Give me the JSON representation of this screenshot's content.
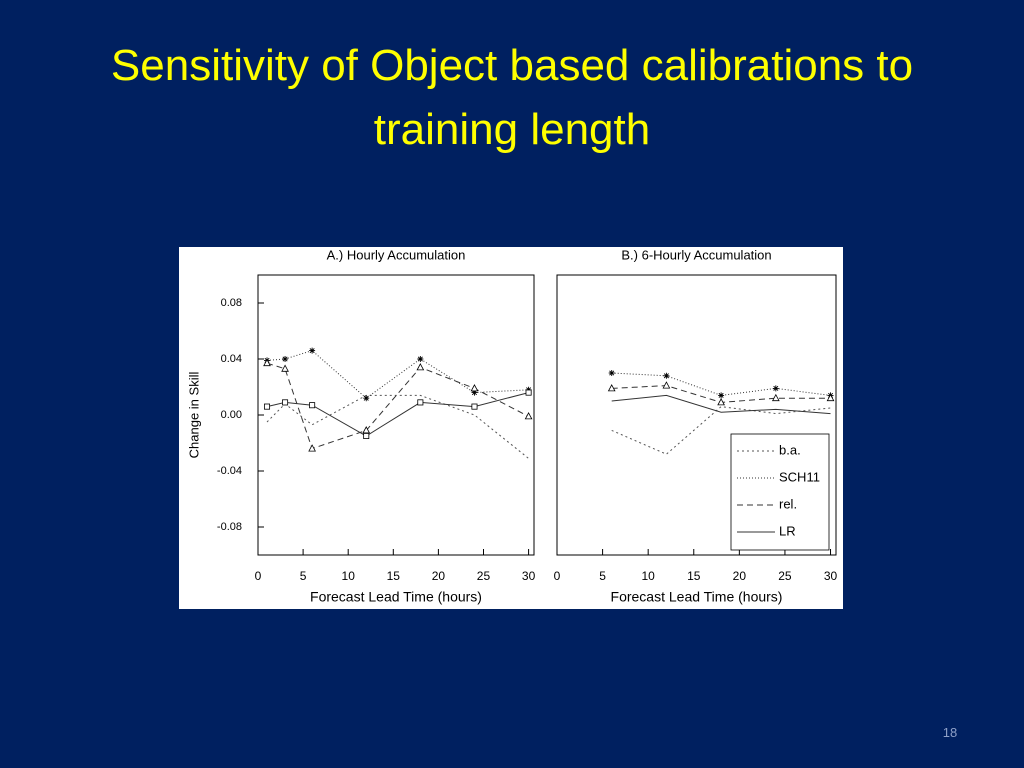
{
  "slide_title": "Sensitivity of Object based calibrations to training length",
  "page_number": "18",
  "chart_data": [
    {
      "type": "line",
      "title": "A.) Hourly Accumulation",
      "x_label": "Forecast Lead Time (hours)",
      "y_label": "Change in Skill",
      "x": [
        1,
        3,
        6,
        12,
        18,
        24,
        30
      ],
      "xlim": [
        0,
        30.6
      ],
      "xticks": [
        0,
        5,
        10,
        15,
        20,
        25,
        30
      ],
      "ylim": [
        -0.1,
        0.1
      ],
      "yticks": [
        0.08,
        0.04,
        {
          "value": 0,
          "label": "0.00"
        },
        -0.04,
        -0.08
      ],
      "series": [
        {
          "name": "b.a.",
          "color": "#555555",
          "dash": "2,3",
          "values": [
            -0.005,
            0.008,
            -0.007,
            0.014,
            0.014,
            0.0,
            -0.031
          ]
        },
        {
          "name": "SCH11",
          "color": "#333333",
          "dash": "1,2",
          "marker": "asterisk",
          "values": [
            0.039,
            0.04,
            0.046,
            0.012,
            0.04,
            0.016,
            0.018
          ]
        },
        {
          "name": "rel.",
          "color": "#333333",
          "dash": "6,4",
          "marker": "triangle",
          "values": [
            0.037,
            0.033,
            -0.024,
            -0.011,
            0.034,
            0.019,
            -0.001
          ]
        },
        {
          "name": "LR",
          "color": "#333333",
          "dash": "none",
          "marker": "square",
          "values": [
            0.006,
            0.009,
            0.007,
            -0.015,
            0.009,
            0.006,
            0.016
          ]
        }
      ]
    },
    {
      "type": "line",
      "title": "B.) 6-Hourly Accumulation",
      "x_label": "Forecast Lead Time (hours)",
      "x": [
        6,
        12,
        18,
        24,
        30
      ],
      "xlim": [
        0,
        30.6
      ],
      "xticks": [
        0,
        5,
        10,
        15,
        20,
        25,
        30
      ],
      "ylim": [
        -0.1,
        0.1
      ],
      "legend": "lower right",
      "series": [
        {
          "name": "b.a.",
          "color": "#555555",
          "dash": "2,3",
          "values": [
            -0.011,
            -0.028,
            0.006,
            0.001,
            0.005
          ]
        },
        {
          "name": "SCH11",
          "color": "#333333",
          "dash": "1,2",
          "marker": "asterisk",
          "values": [
            0.03,
            0.028,
            0.014,
            0.019,
            0.014
          ]
        },
        {
          "name": "rel.",
          "color": "#333333",
          "dash": "6,4",
          "marker": "triangle",
          "values": [
            0.019,
            0.021,
            0.009,
            0.012,
            0.012
          ]
        },
        {
          "name": "LR",
          "color": "#333333",
          "dash": "none",
          "values": [
            0.01,
            0.014,
            0.002,
            0.004,
            0.001
          ]
        }
      ]
    }
  ]
}
